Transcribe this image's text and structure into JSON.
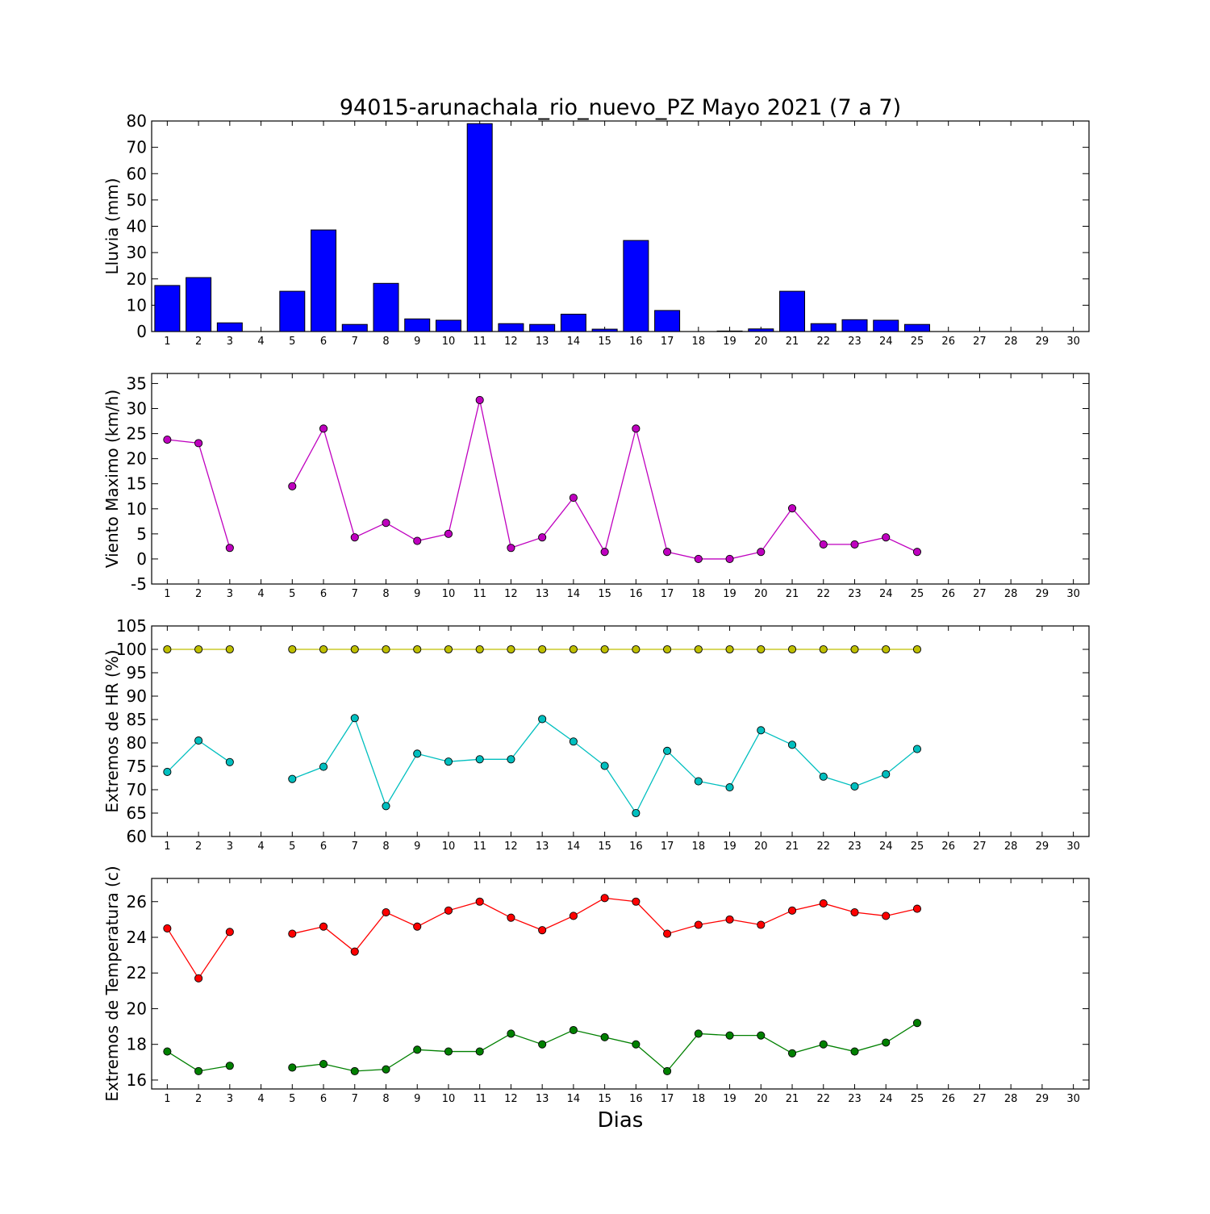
{
  "chart_data": [
    {
      "type": "bar",
      "title": "94015-arunachala_rio_nuevo_PZ Mayo 2021  (7 a 7)",
      "ylabel": "Lluvia (mm)",
      "xlabel": "",
      "x": [
        1,
        2,
        3,
        4,
        5,
        6,
        7,
        8,
        9,
        10,
        11,
        12,
        13,
        14,
        15,
        16,
        17,
        18,
        19,
        20,
        21,
        22,
        23,
        24,
        25,
        26,
        27,
        28,
        29,
        30
      ],
      "xlim": [
        0.5,
        30.5
      ],
      "ylim": [
        0,
        80
      ],
      "yticks": [
        0,
        10,
        20,
        30,
        40,
        50,
        60,
        70,
        80
      ],
      "grid": false,
      "series": [
        {
          "color": "#0000ff",
          "values": [
            17.5,
            20.5,
            3.3,
            0,
            15.3,
            38.6,
            2.7,
            18.3,
            4.8,
            4.3,
            79,
            3.0,
            2.7,
            6.6,
            0.9,
            34.6,
            8.0,
            0,
            0.2,
            1.0,
            15.3,
            3.0,
            4.5,
            4.3,
            2.7,
            null,
            null,
            null,
            null,
            null
          ]
        }
      ]
    },
    {
      "type": "line",
      "ylabel": "Viento Maximo (km/h)",
      "xlabel": "",
      "x": [
        1,
        2,
        3,
        4,
        5,
        6,
        7,
        8,
        9,
        10,
        11,
        12,
        13,
        14,
        15,
        16,
        17,
        18,
        19,
        20,
        21,
        22,
        23,
        24,
        25,
        26,
        27,
        28,
        29,
        30
      ],
      "xlim": [
        0.5,
        30.5
      ],
      "ylim": [
        -5,
        37
      ],
      "yticks": [
        -5,
        0,
        5,
        10,
        15,
        20,
        25,
        30,
        35
      ],
      "grid": false,
      "series": [
        {
          "color": "#bf00bf",
          "values": [
            23.8,
            23.1,
            2.2,
            null,
            14.5,
            26.0,
            4.3,
            7.2,
            3.6,
            5.0,
            31.7,
            2.2,
            4.3,
            12.2,
            1.4,
            26.0,
            1.4,
            0,
            0,
            1.4,
            10.1,
            2.9,
            2.9,
            4.3,
            1.4,
            null,
            null,
            null,
            null,
            null
          ]
        }
      ]
    },
    {
      "type": "line",
      "ylabel": "Extremos de HR (%)",
      "xlabel": "",
      "x": [
        1,
        2,
        3,
        4,
        5,
        6,
        7,
        8,
        9,
        10,
        11,
        12,
        13,
        14,
        15,
        16,
        17,
        18,
        19,
        20,
        21,
        22,
        23,
        24,
        25,
        26,
        27,
        28,
        29,
        30
      ],
      "xlim": [
        0.5,
        30.5
      ],
      "ylim": [
        60,
        105
      ],
      "yticks": [
        60,
        65,
        70,
        75,
        80,
        85,
        90,
        95,
        100,
        105
      ],
      "grid": false,
      "series": [
        {
          "color": "#bfbf00",
          "values": [
            100,
            100,
            100,
            null,
            100,
            100,
            100,
            100,
            100,
            100,
            100,
            100,
            100,
            100,
            100,
            100,
            100,
            100,
            100,
            100,
            100,
            100,
            100,
            100,
            100,
            null,
            null,
            null,
            null,
            null
          ]
        },
        {
          "color": "#00bfbf",
          "values": [
            73.8,
            80.5,
            75.9,
            null,
            72.3,
            74.9,
            85.3,
            66.5,
            77.7,
            76.0,
            76.5,
            76.5,
            85.1,
            80.3,
            75.1,
            65.0,
            78.3,
            71.8,
            70.5,
            82.7,
            79.6,
            72.8,
            70.7,
            73.3,
            78.7,
            null,
            null,
            null,
            null,
            null
          ]
        }
      ]
    },
    {
      "type": "line",
      "ylabel": "Extremos de Temperatura (c)",
      "xlabel": "Dias",
      "x": [
        1,
        2,
        3,
        4,
        5,
        6,
        7,
        8,
        9,
        10,
        11,
        12,
        13,
        14,
        15,
        16,
        17,
        18,
        19,
        20,
        21,
        22,
        23,
        24,
        25,
        26,
        27,
        28,
        29,
        30
      ],
      "xlim": [
        0.5,
        30.5
      ],
      "ylim": [
        15.5,
        27.3
      ],
      "yticks": [
        16,
        18,
        20,
        22,
        24,
        26
      ],
      "grid": false,
      "series": [
        {
          "color": "#ff0000",
          "values": [
            24.5,
            21.7,
            24.3,
            null,
            24.2,
            24.6,
            23.2,
            25.4,
            24.6,
            25.5,
            26.0,
            25.1,
            24.4,
            25.2,
            26.2,
            26.0,
            24.2,
            24.7,
            25.0,
            24.7,
            25.5,
            25.9,
            25.4,
            25.2,
            25.6,
            null,
            null,
            null,
            null,
            null
          ]
        },
        {
          "color": "#008000",
          "values": [
            17.6,
            16.5,
            16.8,
            null,
            16.7,
            16.9,
            16.5,
            16.6,
            17.7,
            17.6,
            17.6,
            18.6,
            18.0,
            18.8,
            18.4,
            18.0,
            16.5,
            18.6,
            18.5,
            18.5,
            17.5,
            18.0,
            17.6,
            18.1,
            19.2,
            null,
            null,
            null,
            null,
            null
          ]
        }
      ]
    }
  ]
}
